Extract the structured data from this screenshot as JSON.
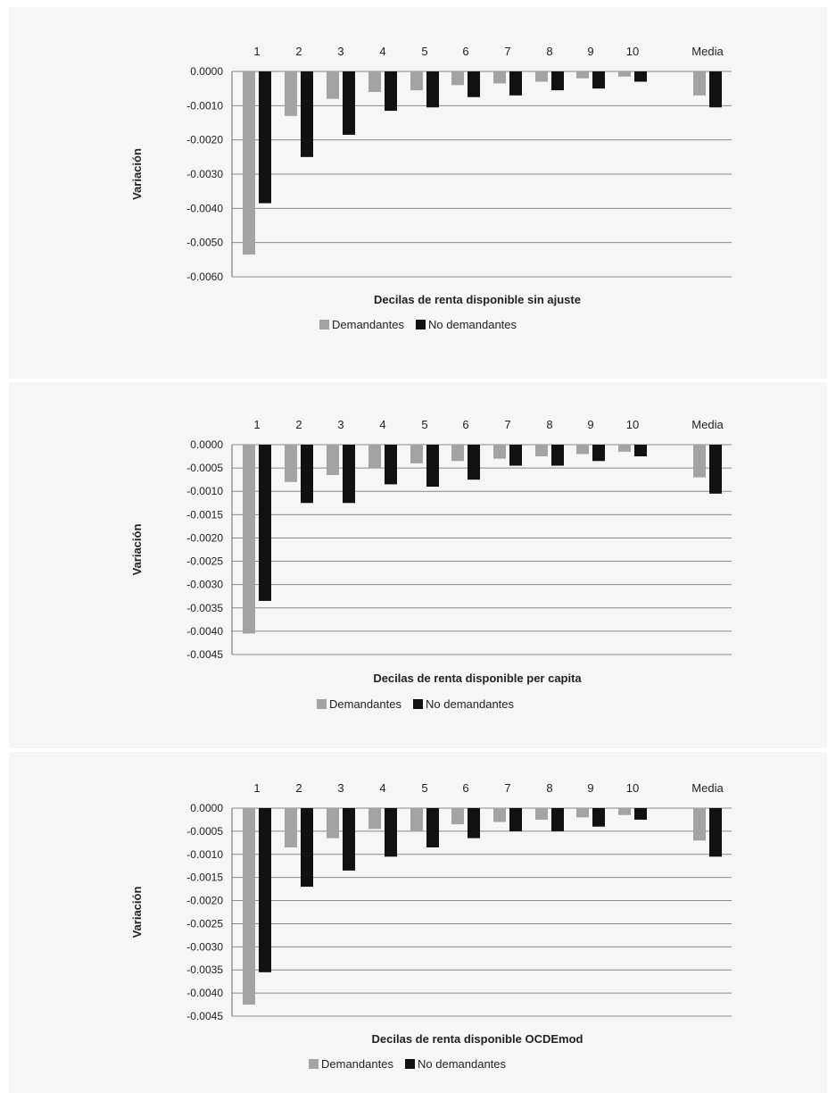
{
  "chart_data": [
    {
      "type": "bar",
      "categories": [
        "1",
        "2",
        "3",
        "4",
        "5",
        "6",
        "7",
        "8",
        "9",
        "10",
        "Media"
      ],
      "series": [
        {
          "name": "Demandantes",
          "values": [
            -0.00535,
            -0.0013,
            -0.0008,
            -0.0006,
            -0.00055,
            -0.0004,
            -0.00035,
            -0.0003,
            -0.0002,
            -0.00015,
            -0.0007
          ]
        },
        {
          "name": "No demandantes",
          "values": [
            -0.00385,
            -0.0025,
            -0.00185,
            -0.00115,
            -0.00105,
            -0.00075,
            -0.0007,
            -0.00055,
            -0.0005,
            -0.0003,
            -0.00105
          ]
        }
      ],
      "xlabel": "Decilas de renta disponible sin ajuste",
      "ylabel": "Variación",
      "ylim": [
        -0.006,
        0
      ],
      "yticks": [
        "0.0000",
        "-0.0010",
        "-0.0020",
        "-0.0030",
        "-0.0040",
        "-0.0050",
        "-0.0060"
      ],
      "ytick_values": [
        0,
        -0.001,
        -0.002,
        -0.003,
        -0.004,
        -0.005,
        -0.006
      ],
      "grid": true,
      "legend": "bottom",
      "colors": [
        "#a3a3a3",
        "#111111"
      ]
    },
    {
      "type": "bar",
      "categories": [
        "1",
        "2",
        "3",
        "4",
        "5",
        "6",
        "7",
        "8",
        "9",
        "10",
        "Media"
      ],
      "series": [
        {
          "name": "Demandantes",
          "values": [
            -0.00405,
            -0.0008,
            -0.00065,
            -0.0005,
            -0.0004,
            -0.00035,
            -0.0003,
            -0.00025,
            -0.0002,
            -0.00015,
            -0.0007
          ]
        },
        {
          "name": "No demandantes",
          "values": [
            -0.00335,
            -0.00125,
            -0.00125,
            -0.00085,
            -0.0009,
            -0.00075,
            -0.00045,
            -0.00045,
            -0.00035,
            -0.00025,
            -0.00105
          ]
        }
      ],
      "xlabel": "Decilas de renta disponible per capita",
      "ylabel": "Variación",
      "ylim": [
        -0.0045,
        0
      ],
      "yticks": [
        "0.0000",
        "-0.0005",
        "-0.0010",
        "-0.0015",
        "-0.0020",
        "-0.0025",
        "-0.0030",
        "-0.0035",
        "-0.0040",
        "-0.0045"
      ],
      "ytick_values": [
        0,
        -0.0005,
        -0.001,
        -0.0015,
        -0.002,
        -0.0025,
        -0.003,
        -0.0035,
        -0.004,
        -0.0045
      ],
      "grid": true,
      "legend": "bottom",
      "colors": [
        "#a3a3a3",
        "#111111"
      ]
    },
    {
      "type": "bar",
      "categories": [
        "1",
        "2",
        "3",
        "4",
        "5",
        "6",
        "7",
        "8",
        "9",
        "10",
        "Media"
      ],
      "series": [
        {
          "name": "Demandantes",
          "values": [
            -0.00425,
            -0.00085,
            -0.00065,
            -0.00045,
            -0.0005,
            -0.00035,
            -0.0003,
            -0.00025,
            -0.0002,
            -0.00015,
            -0.0007
          ]
        },
        {
          "name": "No demandantes",
          "values": [
            -0.00355,
            -0.0017,
            -0.00135,
            -0.00105,
            -0.00085,
            -0.00065,
            -0.0005,
            -0.0005,
            -0.0004,
            -0.00025,
            -0.00105
          ]
        }
      ],
      "xlabel": "Decilas de renta disponible OCDEmod",
      "ylabel": "Variación",
      "ylim": [
        -0.0045,
        0
      ],
      "yticks": [
        "0.0000",
        "-0.0005",
        "-0.0010",
        "-0.0015",
        "-0.0020",
        "-0.0025",
        "-0.0030",
        "-0.0035",
        "-0.0040",
        "-0.0045"
      ],
      "ytick_values": [
        0,
        -0.0005,
        -0.001,
        -0.0015,
        -0.002,
        -0.0025,
        -0.003,
        -0.0035,
        -0.004,
        -0.0045
      ],
      "grid": true,
      "legend": "bottom",
      "colors": [
        "#a3a3a3",
        "#111111"
      ]
    }
  ]
}
